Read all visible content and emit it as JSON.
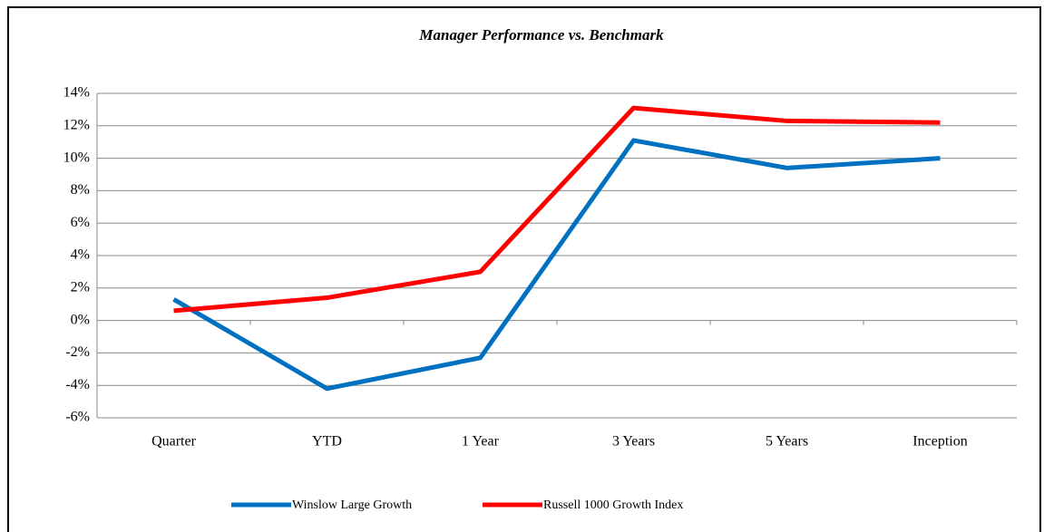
{
  "chart_data": {
    "type": "line",
    "title": "Manager Performance vs. Benchmark",
    "categories": [
      "Quarter",
      "YTD",
      "1 Year",
      "3 Years",
      "5 Years",
      "Inception"
    ],
    "series": [
      {
        "name": "Winslow Large Growth",
        "color": "#0070c0",
        "values": [
          1.3,
          -4.2,
          -2.3,
          11.1,
          9.4,
          10.0
        ]
      },
      {
        "name": "Russell 1000 Growth Index",
        "color": "#ff0000",
        "values": [
          0.6,
          1.4,
          3.0,
          13.1,
          12.3,
          12.2
        ]
      }
    ],
    "ylim": [
      -6,
      14
    ],
    "yticks": [
      {
        "value": -6,
        "label": "-6%"
      },
      {
        "value": -4,
        "label": "-4%"
      },
      {
        "value": -2,
        "label": "-2%"
      },
      {
        "value": 0,
        "label": "0%"
      },
      {
        "value": 2,
        "label": "2%"
      },
      {
        "value": 4,
        "label": "4%"
      },
      {
        "value": 6,
        "label": "6%"
      },
      {
        "value": 8,
        "label": "8%"
      },
      {
        "value": 10,
        "label": "10%"
      },
      {
        "value": 12,
        "label": "12%"
      },
      {
        "value": 14,
        "label": "14%"
      }
    ],
    "grid": true,
    "legend": "bottom"
  }
}
